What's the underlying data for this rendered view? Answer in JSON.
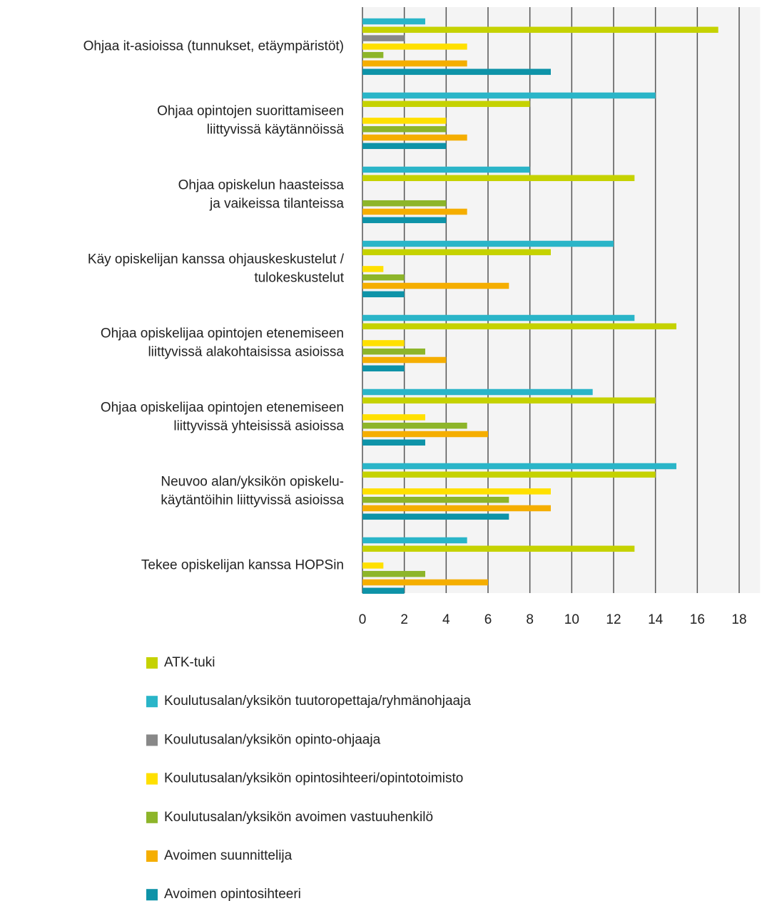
{
  "chart_data": {
    "type": "hbar",
    "categories": [
      [
        "Ohjaa it-asioissa (tunnukset, etäympäristöt)"
      ],
      [
        "Ohjaa opintojen suorittamiseen",
        "liittyvissä käytännöissä"
      ],
      [
        "Ohjaa opiskelun haasteissa",
        "ja vaikeissa tilanteissa"
      ],
      [
        "Käy opiskelijan kanssa ohjauskeskustelut /",
        "tulokeskustelut"
      ],
      [
        "Ohjaa opiskelijaa opintojen etenemiseen",
        "liittyvissä alakohtaisissa asioissa"
      ],
      [
        "Ohjaa opiskelijaa opintojen etenemiseen",
        "liittyvissä yhteisissä asioissa"
      ],
      [
        "Neuvoo alan/yksikön opiskelu-",
        "käytäntöihin liittyvissä asioissa"
      ],
      [
        "Tekee opiskelijan kanssa HOPSin"
      ]
    ],
    "series": [
      {
        "name": "ATK-tuki",
        "color": "#c5d200",
        "values": [
          17,
          8,
          13,
          9,
          15,
          14,
          14,
          13
        ]
      },
      {
        "name": "Koulutusalan/yksikön tuutoropettaja/ryhmänohjaaja",
        "color": "#2ab5c8",
        "values": [
          3,
          14,
          8,
          12,
          13,
          11,
          15,
          5
        ]
      },
      {
        "name": "Koulutusalan/yksikön opinto-ohjaaja",
        "color": "#888888",
        "values": [
          2,
          0,
          0,
          0,
          0,
          0,
          0,
          0
        ]
      },
      {
        "name": "Koulutusalan/yksikön opintosihteeri/opintotoimisto",
        "color": "#ffe000",
        "values": [
          5,
          4,
          0,
          1,
          2,
          3,
          9,
          1
        ]
      },
      {
        "name": "Koulutusalan/yksikön avoimen vastuuhenkilö",
        "color": "#8db52a",
        "values": [
          1,
          4,
          4,
          2,
          3,
          5,
          7,
          3
        ]
      },
      {
        "name": "Avoimen suunnittelija",
        "color": "#f5ae00",
        "values": [
          5,
          5,
          5,
          7,
          4,
          6,
          9,
          6
        ]
      },
      {
        "name": "Avoimen opintosihteeri",
        "color": "#0e93a8",
        "values": [
          9,
          4,
          4,
          2,
          2,
          3,
          7,
          2
        ]
      }
    ],
    "xlim": [
      0,
      19
    ],
    "xticks": [
      0,
      2,
      4,
      6,
      8,
      10,
      12,
      14,
      16,
      18
    ],
    "grid": true
  }
}
